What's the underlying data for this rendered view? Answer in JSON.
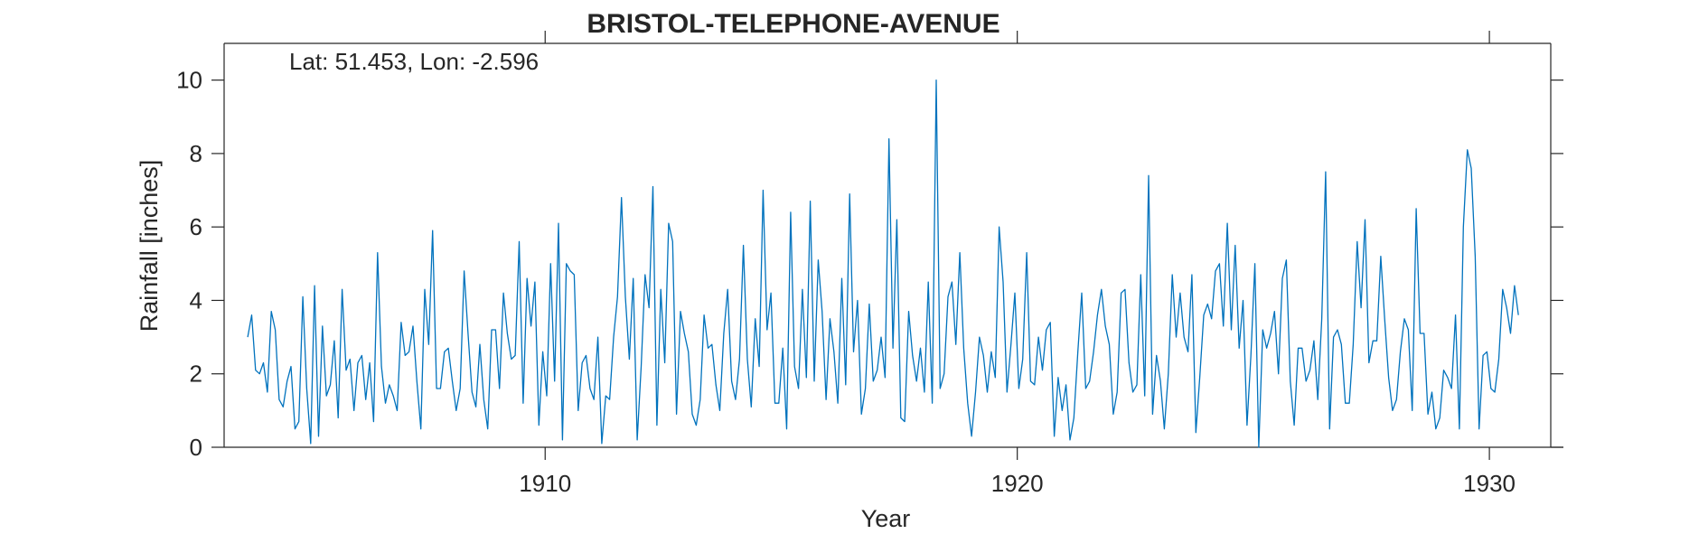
{
  "chart_data": {
    "type": "line",
    "title": "BRISTOL-TELEPHONE-AVENUE",
    "xlabel": "Year",
    "ylabel": "Rainfall [inches]",
    "annotation": "Lat: 51.453, Lon: -2.596",
    "xlim": [
      1903.2,
      1931.3
    ],
    "ylim": [
      0,
      11
    ],
    "xticks": [
      1910,
      1920,
      1930
    ],
    "yticks": [
      0,
      2,
      4,
      6,
      8,
      10
    ],
    "grid": false,
    "line_color": "#0072BD",
    "series": [
      {
        "x_start": 1903.7,
        "x_step": 0.08333,
        "values": [
          3.0,
          3.6,
          2.1,
          2.0,
          2.3,
          1.5,
          3.7,
          3.2,
          1.3,
          1.1,
          1.8,
          2.2,
          0.5,
          0.7,
          4.1,
          1.6,
          0.1,
          4.4,
          0.3,
          3.3,
          1.4,
          1.7,
          2.9,
          0.8,
          4.3,
          2.1,
          2.4,
          1.0,
          2.3,
          2.5,
          1.3,
          2.3,
          0.7,
          5.3,
          2.2,
          1.2,
          1.7,
          1.4,
          1.0,
          3.4,
          2.5,
          2.6,
          3.3,
          1.8,
          0.5,
          4.3,
          2.8,
          5.9,
          1.6,
          1.6,
          2.6,
          2.7,
          1.8,
          1.0,
          1.6,
          4.8,
          3.1,
          1.5,
          1.1,
          2.8,
          1.3,
          0.5,
          3.2,
          3.2,
          1.6,
          4.2,
          3.1,
          2.4,
          2.5,
          5.6,
          1.2,
          4.6,
          3.3,
          4.5,
          0.6,
          2.6,
          1.4,
          5.0,
          1.8,
          6.1,
          0.2,
          5.0,
          4.8,
          4.7,
          1.0,
          2.3,
          2.5,
          1.6,
          1.3,
          3.0,
          0.1,
          1.4,
          1.3,
          3.0,
          4.1,
          6.8,
          4.1,
          2.4,
          4.6,
          0.2,
          2.2,
          4.7,
          3.8,
          7.1,
          0.6,
          4.3,
          2.3,
          6.1,
          5.6,
          0.9,
          3.7,
          3.1,
          2.6,
          0.9,
          0.6,
          1.3,
          3.6,
          2.7,
          2.8,
          1.7,
          1.0,
          3.1,
          4.3,
          1.8,
          1.3,
          2.4,
          5.5,
          2.4,
          1.1,
          3.5,
          2.2,
          7.0,
          3.2,
          4.2,
          1.2,
          1.2,
          2.7,
          0.5,
          6.4,
          2.2,
          1.6,
          4.3,
          1.9,
          6.7,
          1.8,
          5.1,
          3.7,
          1.3,
          3.5,
          2.6,
          1.2,
          4.6,
          1.7,
          6.9,
          2.6,
          4.0,
          0.9,
          1.6,
          3.9,
          1.8,
          2.1,
          3.0,
          1.9,
          8.4,
          2.7,
          6.2,
          0.8,
          0.7,
          3.7,
          2.5,
          1.8,
          2.7,
          1.5,
          4.5,
          1.2,
          10.0,
          1.6,
          2.0,
          4.1,
          4.5,
          2.8,
          5.3,
          2.7,
          1.2,
          0.3,
          1.5,
          3.0,
          2.5,
          1.5,
          2.6,
          1.9,
          6.0,
          4.5,
          1.5,
          2.8,
          4.2,
          1.6,
          2.4,
          5.3,
          1.8,
          1.7,
          3.0,
          2.1,
          3.2,
          3.4,
          0.3,
          1.9,
          1.0,
          1.7,
          0.2,
          0.8,
          2.6,
          4.2,
          1.6,
          1.8,
          2.6,
          3.6,
          4.3,
          3.3,
          2.8,
          0.9,
          1.5,
          4.2,
          4.3,
          2.3,
          1.5,
          1.7,
          4.7,
          1.4,
          7.4,
          0.9,
          2.5,
          1.8,
          0.5,
          2.0,
          4.7,
          3.0,
          4.2,
          3.0,
          2.6,
          4.7,
          0.4,
          1.9,
          3.6,
          3.9,
          3.5,
          4.8,
          5.0,
          3.3,
          6.1,
          3.2,
          5.5,
          2.7,
          4.0,
          0.6,
          2.5,
          5.0,
          0.0,
          3.2,
          2.7,
          3.1,
          3.7,
          2.0,
          4.6,
          5.1,
          1.8,
          0.6,
          2.7,
          2.7,
          1.8,
          2.1,
          2.9,
          1.3,
          3.5,
          7.5,
          0.5,
          3.0,
          3.2,
          2.8,
          1.2,
          1.2,
          2.8,
          5.6,
          3.8,
          6.2,
          2.3,
          2.9,
          2.9,
          5.2,
          3.5,
          1.9,
          1.0,
          1.3,
          2.6,
          3.5,
          3.2,
          1.0,
          6.5,
          3.1,
          3.1,
          0.9,
          1.5,
          0.5,
          0.8,
          2.1,
          1.9,
          1.6,
          3.6,
          0.5,
          6.0,
          8.1,
          7.6,
          5.2,
          0.5,
          2.5,
          2.6,
          1.6,
          1.5,
          2.4,
          4.3,
          3.8,
          3.1,
          4.4,
          3.6
        ]
      }
    ]
  }
}
